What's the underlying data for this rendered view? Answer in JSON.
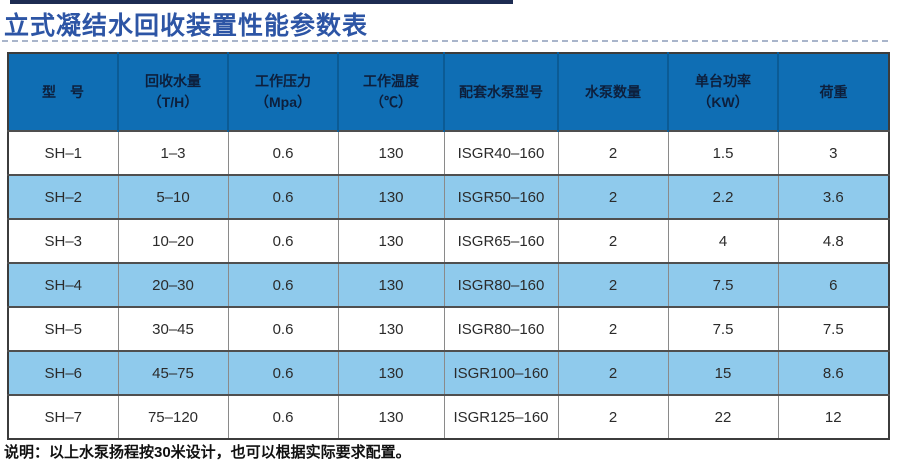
{
  "title": "立式凝结水回收装置性能参数表",
  "note": "说明：以上水泵扬程按30米设计，也可以根据实际要求配置。",
  "colors": {
    "title_blue": "#2d55a5",
    "top_bar_navy": "#1d2c52",
    "header_bg": "#0f6eb4",
    "header_divider": "#0b5b95",
    "stripe_blue": "#8fcaec",
    "border_dark": "#3c3c3c",
    "header_text": "#0d1f3c",
    "body_text": "#2b2b2b"
  },
  "table": {
    "columns": [
      {
        "title": "型　号",
        "unit": ""
      },
      {
        "title": "回收水量",
        "unit": "（T/H）"
      },
      {
        "title": "工作压力",
        "unit": "（Mpa）"
      },
      {
        "title": "工作温度",
        "unit": "（℃）"
      },
      {
        "title": "配套水泵型号",
        "unit": ""
      },
      {
        "title": "水泵数量",
        "unit": ""
      },
      {
        "title": "单台功率",
        "unit": "（KW）"
      },
      {
        "title": "荷重",
        "unit": ""
      }
    ],
    "rows": [
      [
        "SH–1",
        "1–3",
        "0.6",
        "130",
        "ISGR40–160",
        "2",
        "1.5",
        "3"
      ],
      [
        "SH–2",
        "5–10",
        "0.6",
        "130",
        "ISGR50–160",
        "2",
        "2.2",
        "3.6"
      ],
      [
        "SH–3",
        "10–20",
        "0.6",
        "130",
        "ISGR65–160",
        "2",
        "4",
        "4.8"
      ],
      [
        "SH–4",
        "20–30",
        "0.6",
        "130",
        "ISGR80–160",
        "2",
        "7.5",
        "6"
      ],
      [
        "SH–5",
        "30–45",
        "0.6",
        "130",
        "ISGR80–160",
        "2",
        "7.5",
        "7.5"
      ],
      [
        "SH–6",
        "45–75",
        "0.6",
        "130",
        "ISGR100–160",
        "2",
        "15",
        "8.6"
      ],
      [
        "SH–7",
        "75–120",
        "0.6",
        "130",
        "ISGR125–160",
        "2",
        "22",
        "12"
      ]
    ]
  }
}
